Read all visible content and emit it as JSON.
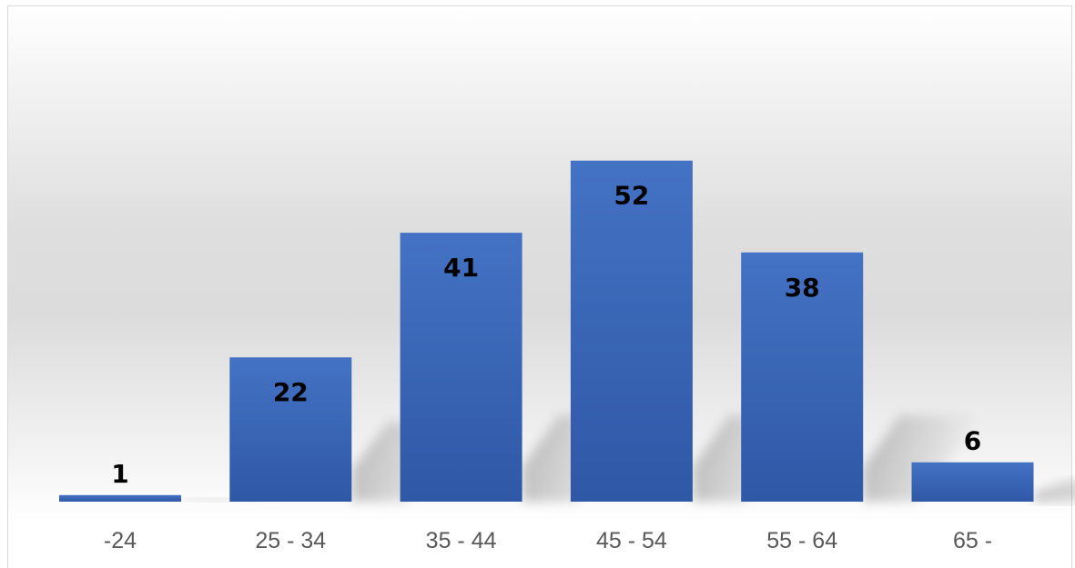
{
  "chart_data": {
    "type": "bar",
    "title": "",
    "xlabel": "",
    "ylabel": "",
    "categories": [
      "-24",
      "25 - 34",
      "35 - 44",
      "45 - 54",
      "55 - 64",
      "65 -"
    ],
    "values": [
      1,
      22,
      41,
      52,
      38,
      6
    ],
    "data_labels": [
      "1",
      "22",
      "41",
      "52",
      "38",
      "6"
    ],
    "ylim": [
      0,
      60
    ],
    "grid": false,
    "legend": "none",
    "colors": {
      "bar_top": "#4472c4",
      "bar_bottom": "#2f58a6",
      "label_text": "#000000",
      "tick_text": "#595959"
    }
  }
}
